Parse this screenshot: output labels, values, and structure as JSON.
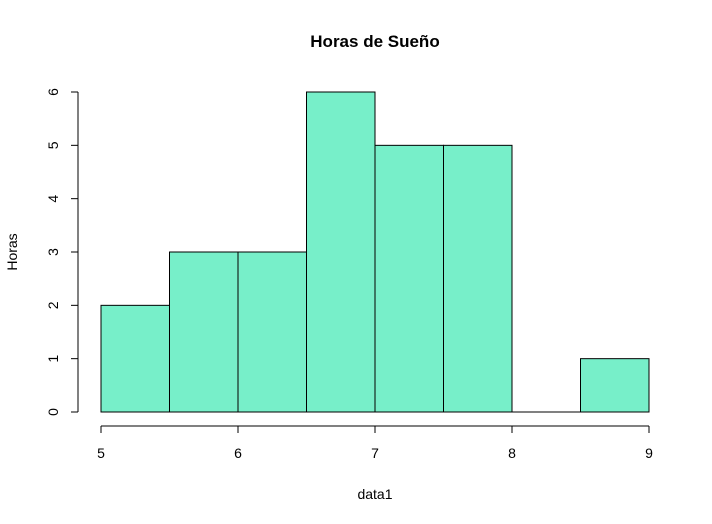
{
  "chart_data": {
    "type": "bar",
    "subtype": "histogram",
    "title": "Horas de Sueño",
    "xlabel": "data1",
    "ylabel": "Horas",
    "bins": [
      {
        "start": 5.0,
        "end": 5.5,
        "count": 2
      },
      {
        "start": 5.5,
        "end": 6.0,
        "count": 3
      },
      {
        "start": 6.0,
        "end": 6.5,
        "count": 3
      },
      {
        "start": 6.5,
        "end": 7.0,
        "count": 6
      },
      {
        "start": 7.0,
        "end": 7.5,
        "count": 5
      },
      {
        "start": 7.5,
        "end": 8.0,
        "count": 5
      },
      {
        "start": 8.0,
        "end": 8.5,
        "count": 0
      },
      {
        "start": 8.5,
        "end": 9.0,
        "count": 1
      }
    ],
    "xlim": [
      5,
      9
    ],
    "ylim": [
      0,
      6
    ],
    "xticks": [
      5,
      6,
      7,
      8,
      9
    ],
    "yticks": [
      0,
      1,
      2,
      3,
      4,
      5,
      6
    ],
    "bar_color": "#77EFC9",
    "border_color": "#000000",
    "grid": false,
    "legend": "none"
  }
}
